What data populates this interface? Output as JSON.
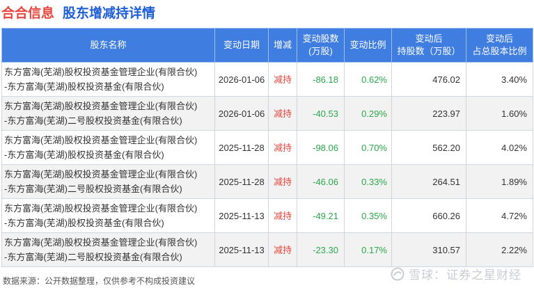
{
  "header": {
    "company": "合合信息",
    "topic": "股东增减持详情"
  },
  "table": {
    "columns": [
      "股东名称",
      "变动日期",
      "增减",
      "变动股数\n(万股)",
      "变动比例",
      "变动后\n持股数（万股）",
      "变动后\n占总股本比例"
    ],
    "rows": [
      {
        "holder_line1": "东方富海(芜湖)股权投资基金管理企业(有限合伙)",
        "holder_line2": "-东方富海(芜湖)股权投资基金(有限合伙)",
        "date": "2026-01-06",
        "type": "减持",
        "change_shares": "-86.18",
        "change_ratio": "0.62%",
        "after_shares": "476.02",
        "after_ratio": "3.40%"
      },
      {
        "holder_line1": "东方富海(芜湖)股权投资基金管理企业(有限合伙)",
        "holder_line2": "-东方富海(芜湖)二号股权投资基金(有限合伙)",
        "date": "2026-01-06",
        "type": "减持",
        "change_shares": "-40.53",
        "change_ratio": "0.29%",
        "after_shares": "223.97",
        "after_ratio": "1.60%"
      },
      {
        "holder_line1": "东方富海(芜湖)股权投资基金管理企业(有限合伙)",
        "holder_line2": "-东方富海(芜湖)股权投资基金(有限合伙)",
        "date": "2025-11-28",
        "type": "减持",
        "change_shares": "-98.06",
        "change_ratio": "0.70%",
        "after_shares": "562.20",
        "after_ratio": "4.02%"
      },
      {
        "holder_line1": "东方富海(芜湖)股权投资基金管理企业(有限合伙)",
        "holder_line2": "-东方富海(芜湖)二号股权投资基金(有限合伙)",
        "date": "2025-11-28",
        "type": "减持",
        "change_shares": "-46.06",
        "change_ratio": "0.33%",
        "after_shares": "264.51",
        "after_ratio": "1.89%"
      },
      {
        "holder_line1": "东方富海(芜湖)股权投资基金管理企业(有限合伙)",
        "holder_line2": "-东方富海(芜湖)股权投资基金(有限合伙)",
        "date": "2025-11-13",
        "type": "减持",
        "change_shares": "-49.21",
        "change_ratio": "0.35%",
        "after_shares": "660.26",
        "after_ratio": "4.72%"
      },
      {
        "holder_line1": "东方富海(芜湖)股权投资基金管理企业(有限合伙)",
        "holder_line2": "-东方富海(芜湖)二号股权投资基金(有限合伙)",
        "date": "2025-11-13",
        "type": "减持",
        "change_shares": "-23.30",
        "change_ratio": "0.17%",
        "after_shares": "310.57",
        "after_ratio": "2.22%"
      }
    ]
  },
  "footer": {
    "source": "数据来源：公开数据整理，仅供参考不构成投资建议",
    "watermark": "雪球：证券之星财经"
  },
  "colors": {
    "company_red": "#e8453c",
    "topic_blue": "#1e5fd6",
    "header_bg": "#3f7de0",
    "decrease_red": "#e8453c",
    "ratio_green": "#2aa84a"
  },
  "icons": {
    "watermark_logo": "snowball-icon"
  }
}
